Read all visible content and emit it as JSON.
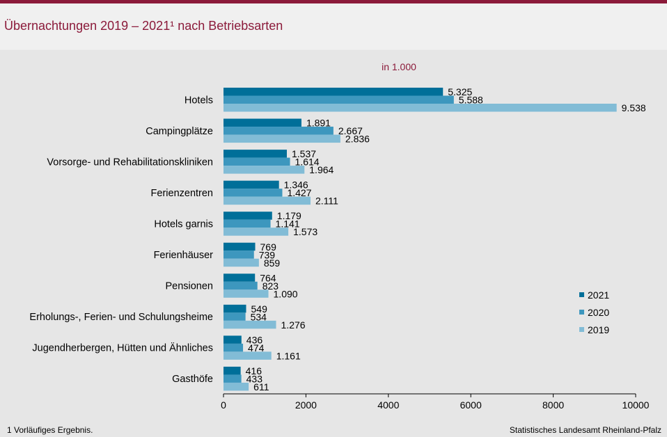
{
  "title": "Übernachtungen 2019 – 2021¹ nach Betriebsarten",
  "footnote": "1 Vorläufiges  Ergebnis.",
  "source": "Statistisches Landesamt Rheinland-Pfalz",
  "chart_data": {
    "type": "bar",
    "orientation": "horizontal",
    "unit_label": "in 1.000",
    "categories": [
      "Hotels",
      "Campingplätze",
      "Vorsorge- und Rehabilitationskliniken",
      "Ferienzentren",
      "Hotels garnis",
      "Ferienhäuser",
      "Pensionen",
      "Erholungs-, Ferien- und Schulungsheime",
      "Jugendherbergen, Hütten und Ähnliches",
      "Gasthöfe"
    ],
    "series": [
      {
        "name": "2021",
        "color": "#006f99",
        "values": [
          5325,
          1891,
          1537,
          1346,
          1179,
          769,
          764,
          549,
          436,
          416
        ],
        "labels": [
          "5.325",
          "1.891",
          "1.537",
          "1.346",
          "1.179",
          "769",
          "764",
          "549",
          "436",
          "416"
        ]
      },
      {
        "name": "2020",
        "color": "#3d97be",
        "values": [
          5588,
          2667,
          1614,
          1427,
          1141,
          739,
          823,
          534,
          474,
          433
        ],
        "labels": [
          "5.588",
          "2.667",
          "1.614",
          "1.427",
          "1.141",
          "739",
          "823",
          "534",
          "474",
          "433"
        ]
      },
      {
        "name": "2019",
        "color": "#82bcd6",
        "values": [
          9538,
          2836,
          1964,
          2111,
          1573,
          859,
          1090,
          1276,
          1161,
          611
        ],
        "labels": [
          "9.538",
          "2.836",
          "1.964",
          "2.111",
          "1.573",
          "859",
          "1.090",
          "1.276",
          "1.161",
          "611"
        ]
      }
    ],
    "xlim": [
      0,
      10000
    ],
    "xticks": [
      0,
      2000,
      4000,
      6000,
      8000,
      10000
    ],
    "xtick_labels": [
      "0",
      "2000",
      "4000",
      "6000",
      "8000",
      "10000"
    ],
    "grid": false,
    "legend_position": "right"
  }
}
